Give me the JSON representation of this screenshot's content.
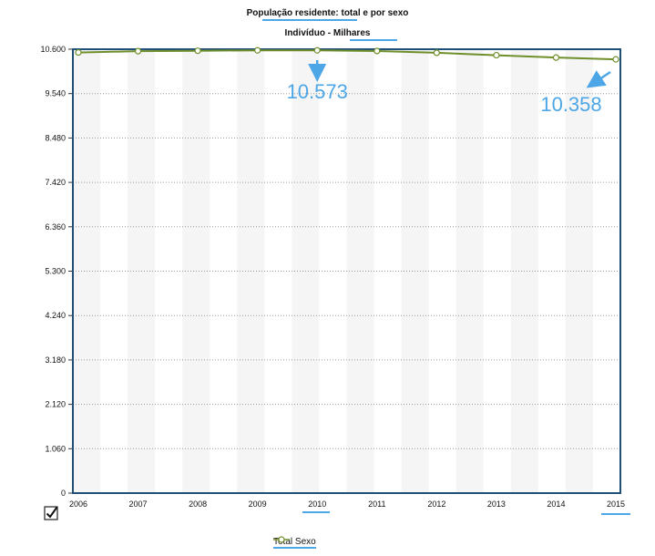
{
  "chart_data": {
    "type": "line",
    "title": "População residente: total e por sexo",
    "subtitle": "Indivíduo - Milhares",
    "categories": [
      "2006",
      "2007",
      "2008",
      "2009",
      "2010",
      "2011",
      "2012",
      "2013",
      "2014",
      "2015"
    ],
    "series": [
      {
        "name": "Total Sexo",
        "values": [
          10522,
          10553,
          10563,
          10573,
          10573,
          10557,
          10515,
          10457,
          10401,
          10358
        ],
        "color": "#6e8f2a"
      }
    ],
    "yticks": [
      "0",
      "1.060",
      "2.120",
      "3.180",
      "4.240",
      "5.300",
      "6.360",
      "7.420",
      "8.480",
      "9.540",
      "10.600"
    ],
    "ylim": [
      0,
      10600
    ],
    "grid": true,
    "legend_position": "bottom",
    "annotations": [
      {
        "text": "10.573",
        "year": "2010"
      },
      {
        "text": "10.358",
        "year": "2015"
      }
    ],
    "annotation_color": "#4da6e6",
    "frame_color": "#1f4e79"
  }
}
